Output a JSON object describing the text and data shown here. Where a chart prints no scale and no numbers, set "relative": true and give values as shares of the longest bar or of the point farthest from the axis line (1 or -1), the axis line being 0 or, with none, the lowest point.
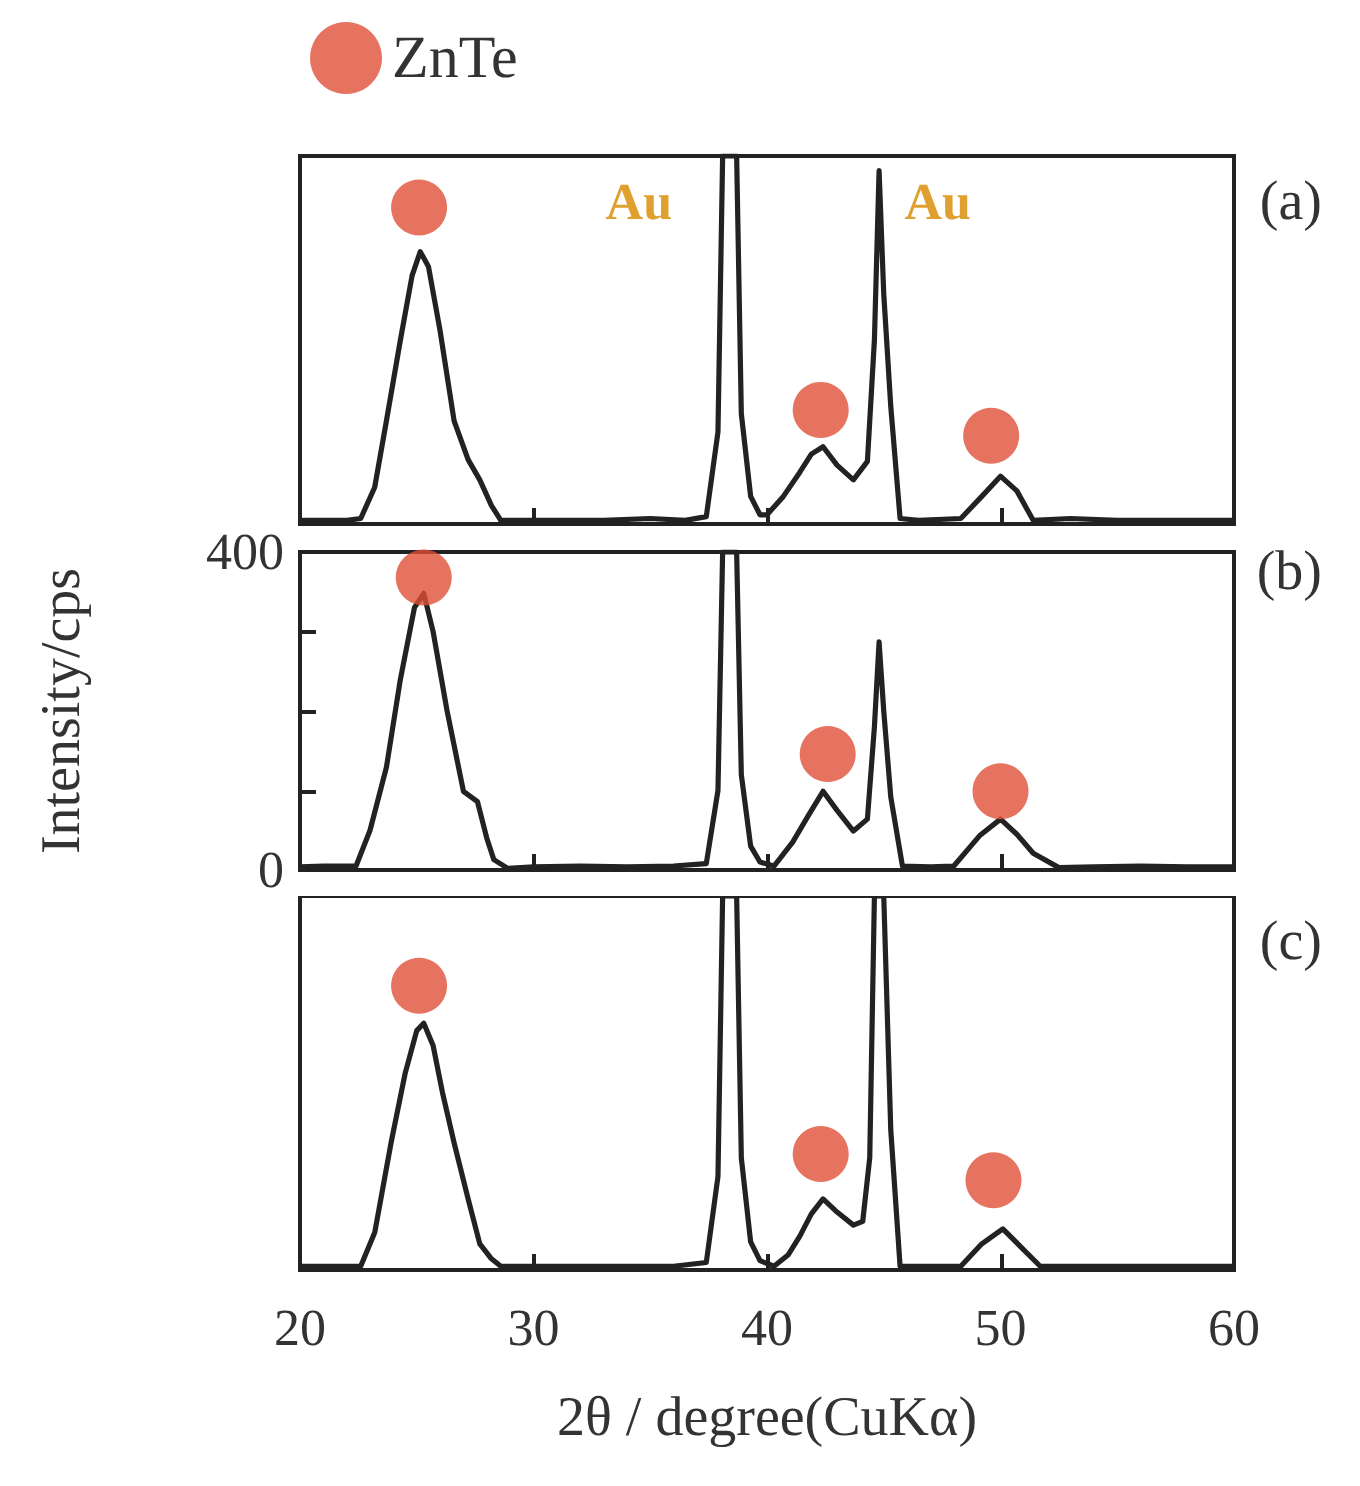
{
  "chart_data": [
    {
      "type": "line",
      "title": "(a)",
      "relative": true,
      "xlim": [
        20,
        60
      ],
      "xticks": [
        20,
        30,
        40,
        50,
        60
      ],
      "tick_labels": false,
      "legend": "top left",
      "series": [
        {
          "type": "line",
          "color": "#222222",
          "marker": "none",
          "x": [
            20,
            21,
            22,
            22.6,
            23.2,
            23.7,
            24.3,
            24.8,
            25.15,
            25.5,
            26.0,
            26.6,
            27.2,
            27.7,
            28.2,
            28.6,
            29.5,
            31,
            33,
            35,
            36.5,
            37.4,
            37.9,
            38.1,
            38.7,
            38.9,
            39.3,
            39.7,
            40.0,
            40.7,
            41.4,
            41.9,
            42.4,
            43.0,
            43.7,
            44.3,
            44.6,
            44.8,
            45.0,
            45.3,
            45.7,
            46.5,
            48.3,
            49.2,
            50.0,
            50.7,
            51.4,
            53,
            55,
            57,
            60
          ],
          "values": [
            0.01,
            0.01,
            0.01,
            0.015,
            0.1,
            0.28,
            0.5,
            0.675,
            0.74,
            0.7,
            0.525,
            0.28,
            0.175,
            0.12,
            0.05,
            0.01,
            0.01,
            0.01,
            0.01,
            0.015,
            0.01,
            0.02,
            0.25,
            1,
            1,
            0.3,
            0.075,
            0.025,
            0.025,
            0.075,
            0.14,
            0.19,
            0.21,
            0.16,
            0.12,
            0.17,
            0.5,
            0.96,
            0.625,
            0.32,
            0.015,
            0.01,
            0.015,
            0.075,
            0.13,
            0.09,
            0.01,
            0.015,
            0.01,
            0.01,
            0.01
          ]
        },
        {
          "type": "scatter",
          "name": "ZnTe",
          "color": "#e05038",
          "marker": "circle",
          "x": [
            25.1,
            42.3,
            49.6
          ],
          "values": [
            0.86,
            0.31,
            0.24
          ]
        }
      ],
      "annotations": [
        "Au",
        "Au"
      ]
    },
    {
      "type": "line",
      "title": "(b)",
      "ylabel": "Intensity/cps",
      "xlim": [
        20,
        60
      ],
      "xticks": [
        20,
        30,
        40,
        50,
        60
      ],
      "ylim": [
        0,
        400
      ],
      "yticks": [
        0,
        {
          "value": 100,
          "label": null
        },
        {
          "value": 200,
          "label": null
        },
        {
          "value": 300,
          "label": null
        },
        400
      ],
      "tick_labels": "y",
      "series": [
        {
          "type": "line",
          "color": "#222222",
          "marker": "none",
          "x": [
            20,
            21,
            22.4,
            23.0,
            23.7,
            24.3,
            24.9,
            25.3,
            25.7,
            26.3,
            27.0,
            27.6,
            28.0,
            28.3,
            28.9,
            30,
            32,
            34,
            36,
            37.4,
            37.9,
            38.1,
            38.7,
            38.9,
            39.3,
            39.7,
            40.3,
            41.1,
            41.8,
            42.4,
            43.0,
            43.7,
            44.3,
            44.6,
            44.8,
            45.0,
            45.3,
            45.8,
            47,
            48.0,
            49.1,
            50.0,
            50.7,
            51.4,
            52.5,
            54,
            56,
            58,
            60
          ],
          "values": [
            4,
            5,
            5,
            50,
            129,
            240,
            330,
            348,
            300,
            200,
            99,
            86,
            40,
            13,
            2,
            4,
            5,
            4,
            5,
            8,
            100,
            400,
            400,
            120,
            30,
            10,
            5,
            35,
            70,
            99,
            75,
            49,
            64,
            180,
            287,
            200,
            92,
            5,
            4,
            5,
            43,
            64,
            45,
            21,
            3,
            4,
            5,
            4,
            4
          ]
        },
        {
          "type": "scatter",
          "color": "#e05038",
          "marker": "circle",
          "x": [
            25.3,
            42.6,
            50.0
          ],
          "values": [
            368,
            146,
            99
          ]
        }
      ]
    },
    {
      "type": "line",
      "title": "(c)",
      "relative": true,
      "xlabel": "2θ / degree(CuKα)",
      "xlim": [
        20,
        60
      ],
      "xticks": [
        20,
        30,
        40,
        50,
        60
      ],
      "tick_labels": "x",
      "series": [
        {
          "type": "line",
          "color": "#222222",
          "marker": "none",
          "x": [
            20,
            21,
            22.6,
            23.2,
            23.9,
            24.5,
            25.0,
            25.3,
            25.7,
            26.1,
            26.6,
            27.2,
            27.7,
            28.2,
            28.6,
            30,
            32,
            34,
            36,
            37.4,
            37.9,
            38.1,
            38.7,
            38.9,
            39.3,
            39.7,
            40.3,
            40.9,
            41.4,
            41.9,
            42.4,
            43.0,
            43.7,
            44.1,
            44.4,
            44.6,
            45.0,
            45.3,
            45.7,
            47,
            48.3,
            49.2,
            50.1,
            50.9,
            51.7,
            53,
            55,
            57,
            60
          ],
          "values": [
            0.01,
            0.01,
            0.01,
            0.1,
            0.34,
            0.525,
            0.64,
            0.66,
            0.6,
            0.475,
            0.34,
            0.19,
            0.07,
            0.03,
            0.01,
            0.01,
            0.01,
            0.01,
            0.01,
            0.02,
            0.25,
            1,
            1,
            0.3,
            0.075,
            0.025,
            0.01,
            0.04,
            0.09,
            0.15,
            0.19,
            0.155,
            0.12,
            0.13,
            0.3,
            1,
            1,
            0.375,
            0.01,
            0.01,
            0.01,
            0.07,
            0.11,
            0.06,
            0.01,
            0.01,
            0.01,
            0.01,
            0.01
          ]
        },
        {
          "type": "scatter",
          "color": "#e05038",
          "marker": "circle",
          "x": [
            25.1,
            42.3,
            49.7
          ],
          "values": [
            0.76,
            0.31,
            0.24
          ]
        }
      ]
    }
  ]
}
